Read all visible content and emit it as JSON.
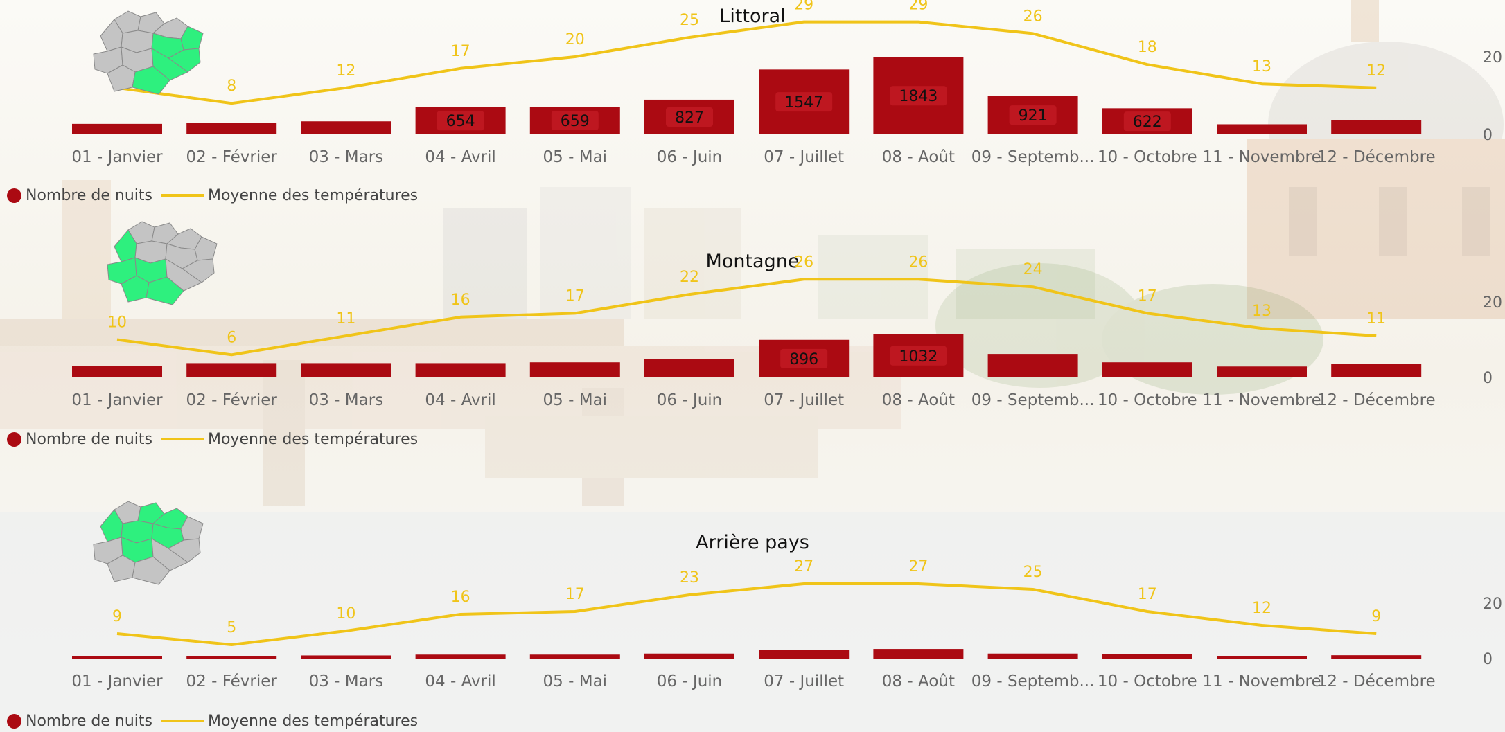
{
  "colors": {
    "bar": "#ab0a12",
    "line": "#f0c419",
    "tick_text": "#666666",
    "map_highlight": "#2ef07e",
    "map_other": "#c4c4c4"
  },
  "legend": {
    "bars": "Nombre de nuits",
    "line": "Moyenne des températures"
  },
  "chart_data": [
    {
      "type": "bar",
      "title": "Littoral",
      "categories": [
        "01 - Janvier",
        "02 - Février",
        "03 - Mars",
        "04 - Avril",
        "05 - Mai",
        "06 - Juin",
        "07 - Juillet",
        "08 - Août",
        "09 - Septemb...",
        "10 - Octobre",
        "11 - Novembre",
        "12 - Décembre"
      ],
      "series": [
        {
          "name": "Nombre de nuits",
          "kind": "bar",
          "values": [
            250,
            280,
            310,
            654,
            659,
            827,
            1547,
            1843,
            921,
            622,
            240,
            340
          ],
          "labeled": [
            false,
            false,
            false,
            true,
            true,
            true,
            true,
            true,
            true,
            true,
            false,
            false
          ]
        },
        {
          "name": "Moyenne des températures",
          "kind": "line",
          "values": [
            12,
            8,
            12,
            17,
            20,
            25,
            29,
            29,
            26,
            18,
            13,
            12
          ]
        }
      ],
      "y_ticks": [
        "0",
        "20"
      ],
      "temp_ylim": [
        0,
        30
      ],
      "nights_ylim": [
        0,
        1900
      ],
      "highlighted_zone": "littoral"
    },
    {
      "type": "bar",
      "title": "Montagne",
      "categories": [
        "01 - Janvier",
        "02 - Février",
        "03 - Mars",
        "04 - Avril",
        "05 - Mai",
        "06 - Juin",
        "07 - Juillet",
        "08 - Août",
        "09 - Septemb...",
        "10 - Octobre",
        "11 - Novembre",
        "12 - Décembre"
      ],
      "series": [
        {
          "name": "Nombre de nuits",
          "kind": "bar",
          "values": [
            280,
            340,
            340,
            340,
            360,
            440,
            896,
            1032,
            560,
            360,
            260,
            330
          ],
          "labeled": [
            false,
            false,
            false,
            false,
            false,
            false,
            true,
            true,
            false,
            false,
            false,
            false
          ]
        },
        {
          "name": "Moyenne des températures",
          "kind": "line",
          "values": [
            10,
            6,
            11,
            16,
            17,
            22,
            26,
            26,
            24,
            17,
            13,
            11
          ]
        }
      ],
      "y_ticks": [
        "0",
        "20"
      ],
      "temp_ylim": [
        0,
        30
      ],
      "nights_ylim": [
        0,
        1900
      ],
      "highlighted_zone": "montagne"
    },
    {
      "type": "bar",
      "title": "Arrière pays",
      "categories": [
        "01 - Janvier",
        "02 - Février",
        "03 - Mars",
        "04 - Avril",
        "05 - Mai",
        "06 - Juin",
        "07 - Juillet",
        "08 - Août",
        "09 - Septemb...",
        "10 - Octobre",
        "11 - Novembre",
        "12 - Décembre"
      ],
      "series": [
        {
          "name": "Nombre de nuits",
          "kind": "bar",
          "values": [
            50,
            65,
            75,
            95,
            95,
            120,
            210,
            230,
            120,
            100,
            65,
            80
          ],
          "labeled": [
            false,
            false,
            false,
            false,
            false,
            false,
            false,
            false,
            false,
            false,
            false,
            false
          ]
        },
        {
          "name": "Moyenne des températures",
          "kind": "line",
          "values": [
            9,
            5,
            10,
            16,
            17,
            23,
            27,
            27,
            25,
            17,
            12,
            9
          ]
        }
      ],
      "y_ticks": [
        "0",
        "20"
      ],
      "temp_ylim": [
        0,
        30
      ],
      "nights_ylim": [
        0,
        1900
      ],
      "highlighted_zone": "arriere"
    }
  ]
}
